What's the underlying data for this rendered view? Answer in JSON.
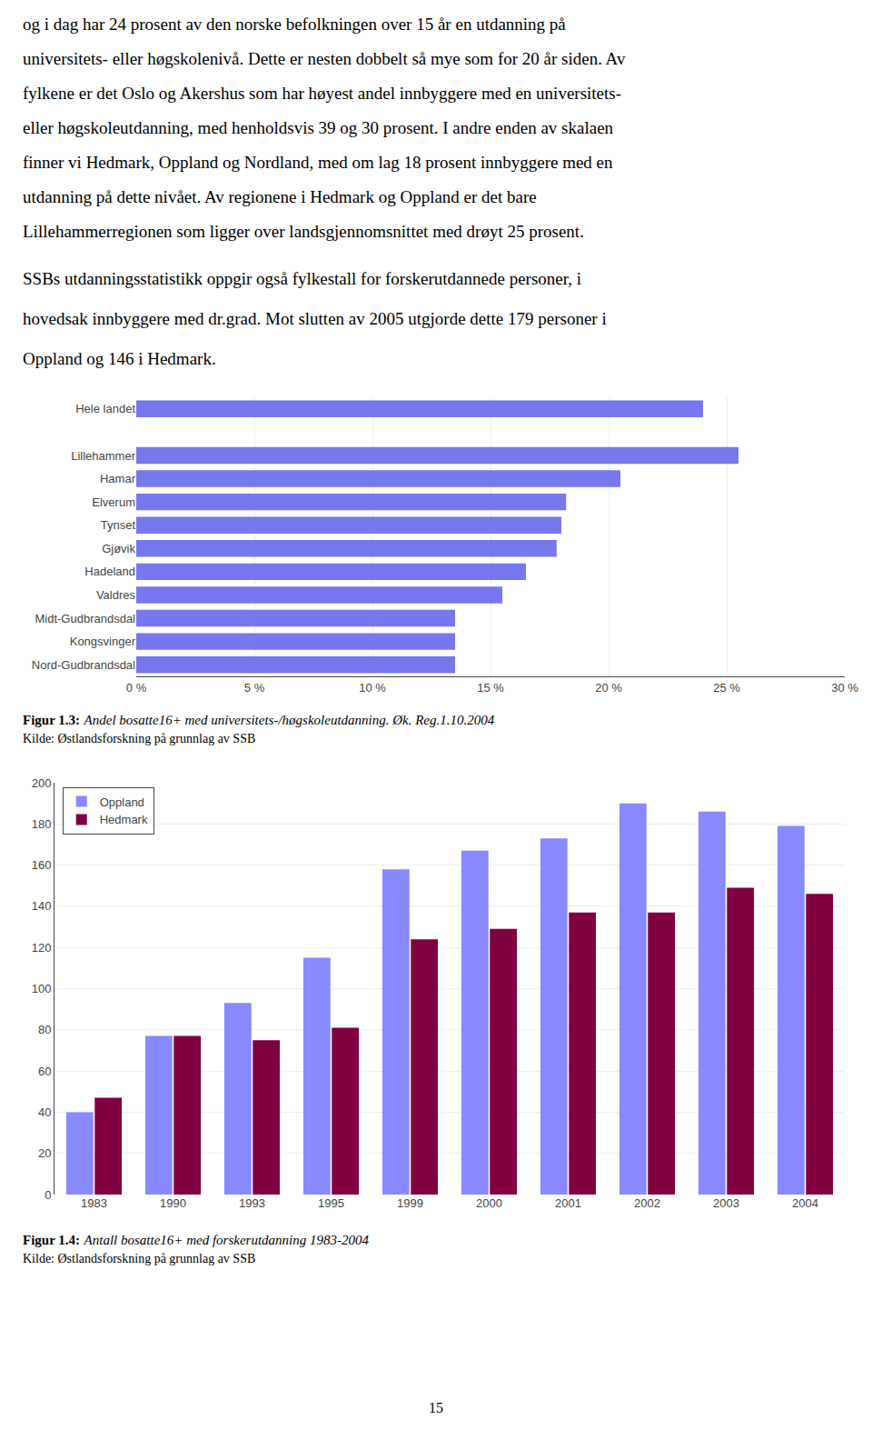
{
  "page_text": [
    [
      "og i dag har 24 prosent av den norske befolkningen over 15 år en utdanning på",
      "universitets- eller høgskolenivå. Dette er nesten dobbelt så mye som for 20 år siden. Av",
      "fylkene er det Oslo og Akershus som har høyest andel innbyggere med en universitets-",
      "eller høgskoleutdanning, med henholdsvis 39 og 30 prosent. I andre enden av skalaen",
      "finner vi Hedmark, Oppland og Nordland, med om lag 18 prosent innbyggere med en",
      "utdanning på dette nivået. Av regionene i Hedmark og Oppland er det bare",
      "Lillehammerregionen som ligger over landsgjennomsnittet med drøyt 25 prosent."
    ],
    [
      "SSBs utdanningsstatistikk oppgir også fylkestall for forskerutdannede personer, i",
      "hovedsak innbyggere med dr.grad. Mot slutten av 2005 utgjorde dette 179 personer i",
      "Oppland og 146 i Hedmark."
    ]
  ],
  "page_number": "15",
  "chart_data": [
    {
      "type": "bar",
      "orientation": "horizontal",
      "title": "Figur 1.3:",
      "subtitle": "Andel bosatte16+ med universitets-/høgskoleutdanning. Øk. Reg.1.10.2004",
      "annotations": [
        "Kilde: Østlandsforskning på grunnlag av SSB"
      ],
      "categories": [
        "Hele landet",
        null,
        "Lillehammer",
        "Hamar",
        "Elverum",
        "Tynset",
        "Gjøvik",
        "Hadeland",
        "Valdres",
        "Midt-Gudbrandsdal",
        "Kongsvinger",
        "Nord-Gudbrandsdal"
      ],
      "values": [
        24.0,
        null,
        25.5,
        20.5,
        18.2,
        18.0,
        17.8,
        16.5,
        15.5,
        13.5,
        13.5,
        13.5
      ],
      "color": "#7777ee",
      "xlim": [
        0,
        30
      ],
      "xticks": [
        {
          "value": 0,
          "label": "0 %"
        },
        {
          "value": 5,
          "label": "5 %"
        },
        {
          "value": 10,
          "label": "10 %"
        },
        {
          "value": 15,
          "label": "15 %"
        },
        {
          "value": 20,
          "label": "20 %"
        },
        {
          "value": 25,
          "label": "25 %"
        },
        {
          "value": 30,
          "label": "30 %"
        }
      ],
      "grid": true
    },
    {
      "type": "bar",
      "title": "Figur 1.4:",
      "subtitle": "Antall bosatte16+ med forskerutdanning 1983-2004",
      "annotations": [
        "Kilde: Østlandsforskning på grunnlag av SSB"
      ],
      "categories": [
        "1983",
        "1990",
        "1993",
        "1995",
        "1999",
        "2000",
        "2001",
        "2002",
        "2003",
        "2004"
      ],
      "series": [
        {
          "name": "Oppland",
          "color": "#8888ff",
          "values": [
            40,
            77,
            93,
            115,
            158,
            167,
            173,
            190,
            186,
            179
          ]
        },
        {
          "name": "Hedmark",
          "color": "#800040",
          "values": [
            47,
            77,
            75,
            81,
            124,
            129,
            137,
            137,
            149,
            146
          ]
        }
      ],
      "ylim": [
        0,
        200
      ],
      "yticks": [
        0,
        20,
        40,
        60,
        80,
        100,
        120,
        140,
        160,
        180,
        200
      ],
      "grid": true,
      "legend": "upper left"
    }
  ]
}
